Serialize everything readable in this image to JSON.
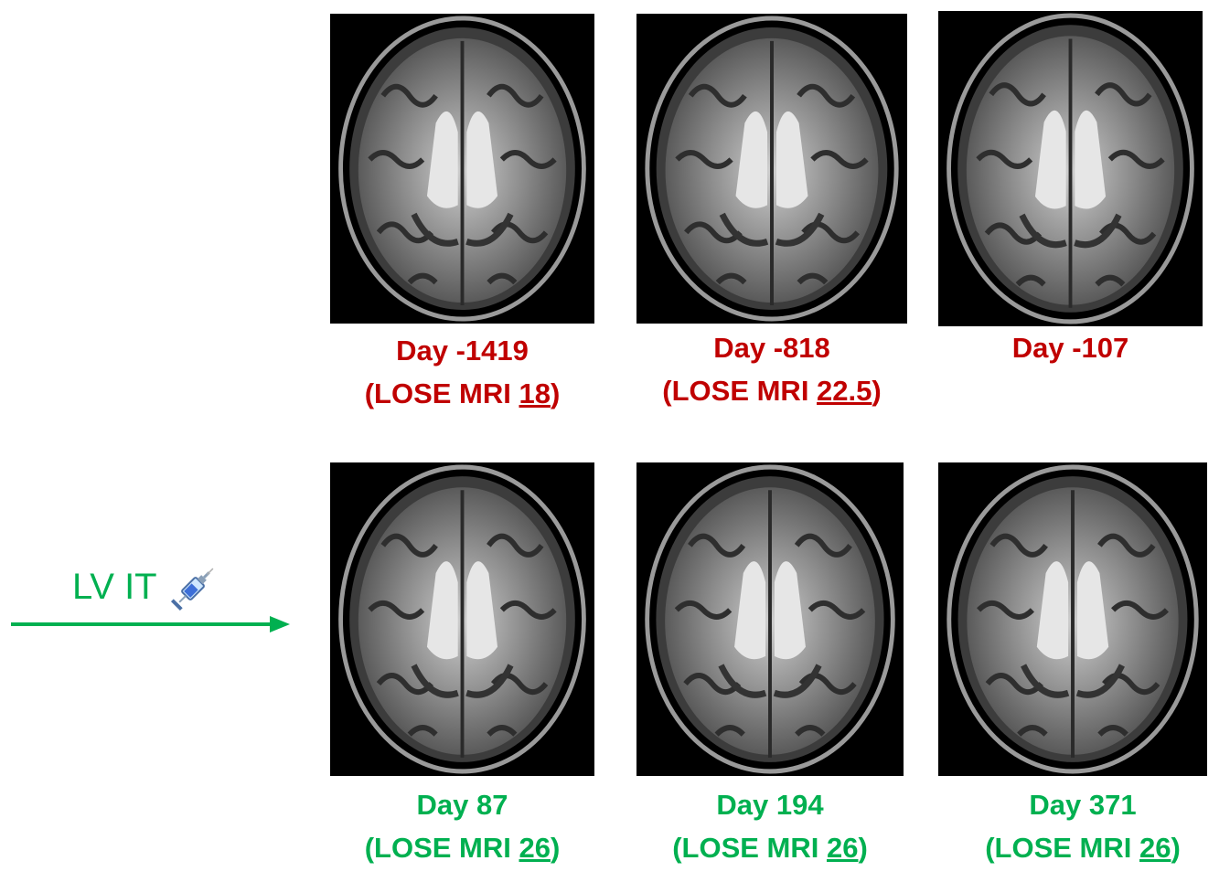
{
  "treatment": {
    "label": "LV IT",
    "icon": "syringe-icon",
    "color": "#00b050"
  },
  "colors": {
    "pre_treatment": "#c00000",
    "post_treatment": "#00b050"
  },
  "scans": [
    {
      "day": "Day -1419",
      "prefix": "(LOSE MRI ",
      "score": "18",
      "suffix": ")"
    },
    {
      "day": "Day -818",
      "prefix": "(LOSE MRI ",
      "score": "22.5",
      "suffix": ")"
    },
    {
      "day": "Day -107"
    },
    {
      "day": "Day 87",
      "prefix": "(LOSE MRI ",
      "score": "26",
      "suffix": ")"
    },
    {
      "day": "Day 194",
      "prefix": "(LOSE MRI ",
      "score": "26",
      "suffix": ")"
    },
    {
      "day": "Day 371",
      "prefix": "(LOSE MRI ",
      "score": "26",
      "suffix": ")"
    }
  ]
}
